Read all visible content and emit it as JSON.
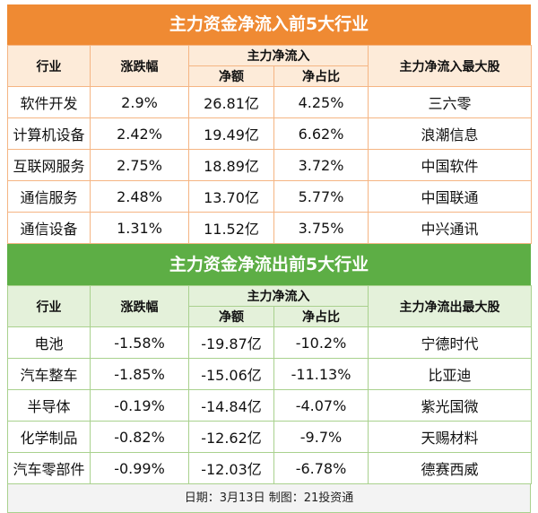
{
  "sections": [
    {
      "title": "主力资金净流入前5大行业",
      "header": {
        "industry": "行业",
        "change": "涨跌幅",
        "flow_group": "主力净流入",
        "net": "净额",
        "ratio": "净占比",
        "top_stock": "主力净流入最大股"
      },
      "rows": [
        [
          "软件开发",
          "2.9%",
          "26.81亿",
          "4.25%",
          "三六零"
        ],
        [
          "计算机设备",
          "2.42%",
          "19.49亿",
          "6.62%",
          "浪潮信息"
        ],
        [
          "互联网服务",
          "2.75%",
          "18.89亿",
          "3.72%",
          "中国软件"
        ],
        [
          "通信服务",
          "2.48%",
          "13.70亿",
          "5.77%",
          "中国联通"
        ],
        [
          "通信设备",
          "1.31%",
          "11.52亿",
          "3.75%",
          "中兴通讯"
        ]
      ]
    },
    {
      "title": "主力资金净流出前5大行业",
      "header": {
        "industry": "行业",
        "change": "涨跌幅",
        "flow_group": "主力净流入",
        "net": "净额",
        "ratio": "净占比",
        "top_stock": "主力净流出最大股"
      },
      "rows": [
        [
          "电池",
          "-1.58%",
          "-19.87亿",
          "-10.2%",
          "宁德时代"
        ],
        [
          "汽车整车",
          "-1.85%",
          "-15.06亿",
          "-11.13%",
          "比亚迪"
        ],
        [
          "半导体",
          "-0.19%",
          "-14.84亿",
          "-4.07%",
          "紫光国微"
        ],
        [
          "化学制品",
          "-0.82%",
          "-12.62亿",
          "-9.7%",
          "天赐材料"
        ],
        [
          "汽车零部件",
          "-0.99%",
          "-12.03亿",
          "-6.78%",
          "德赛西威"
        ]
      ]
    }
  ],
  "footer": "日期：3月13日 制图：21投资通"
}
